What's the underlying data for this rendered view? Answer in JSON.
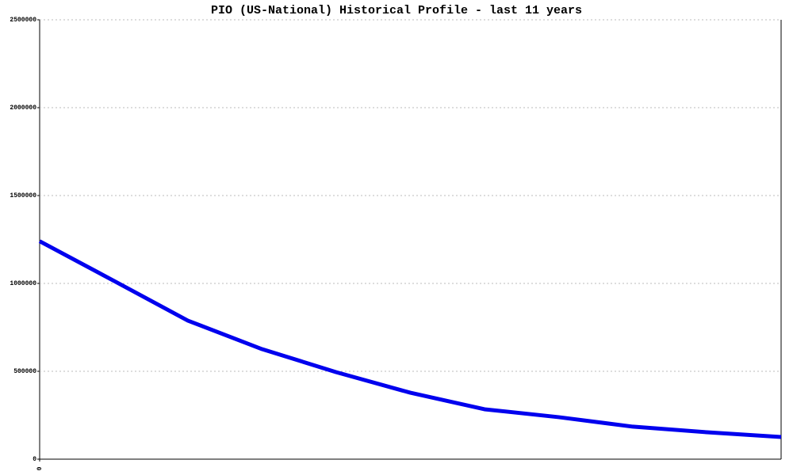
{
  "chart_data": {
    "type": "line",
    "title": "PIO (US-National) Historical Profile - last 11 years",
    "x": [
      0,
      1,
      2,
      3,
      4,
      5,
      6,
      7,
      8,
      9,
      10
    ],
    "series": [
      {
        "color": "#0000ee",
        "values": [
          1240000,
          1015000,
          788000,
          626000,
          495000,
          378000,
          284000,
          239000,
          185000,
          153000,
          126000
        ]
      }
    ],
    "xlim": [
      0,
      10
    ],
    "xticks": [
      0
    ],
    "ylim": [
      0,
      2500000
    ],
    "yticks": [
      0,
      500000,
      1000000,
      1500000,
      2000000,
      2500000
    ],
    "grid": true
  }
}
